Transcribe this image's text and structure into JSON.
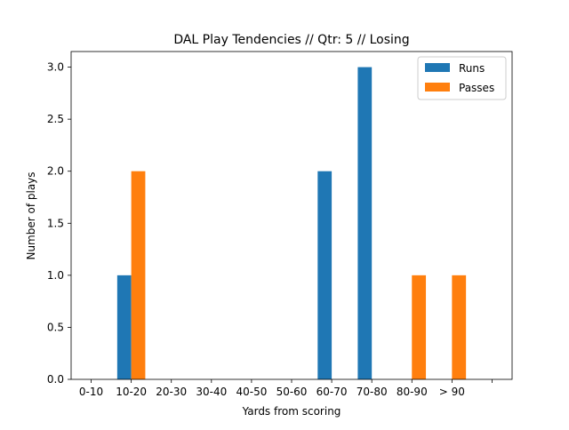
{
  "chart_data": {
    "type": "bar",
    "title": "DAL Play Tendencies // Qtr: 5 // Losing",
    "xlabel": "Yards from scoring",
    "ylabel": "Number of plays",
    "categories": [
      "0-10",
      "10-20",
      "20-30",
      "30-40",
      "40-50",
      "50-60",
      "60-70",
      "70-80",
      "80-90",
      "> 90",
      ""
    ],
    "series": [
      {
        "name": "Runs",
        "color": "#1f77b4",
        "values": [
          0,
          1,
          0,
          0,
          0,
          0,
          2,
          3,
          0,
          0,
          0
        ]
      },
      {
        "name": "Passes",
        "color": "#ff7f0e",
        "values": [
          0,
          2,
          0,
          0,
          0,
          0,
          0,
          0,
          1,
          1,
          0
        ]
      }
    ],
    "ylim": [
      0,
      3.15
    ],
    "yticks": [
      "0.0",
      "0.5",
      "1.0",
      "1.5",
      "2.0",
      "2.5",
      "3.0"
    ],
    "grid": false,
    "legend_position": "top-right"
  }
}
